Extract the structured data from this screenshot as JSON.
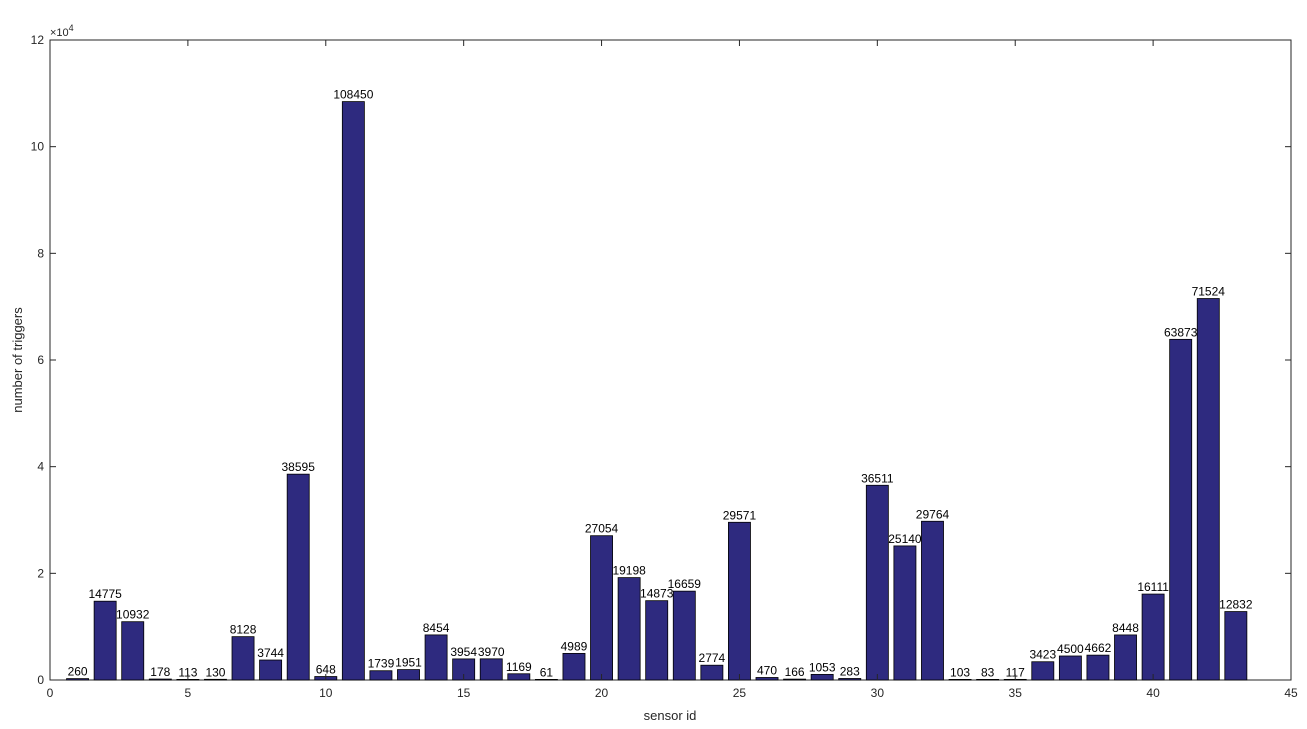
{
  "chart_data": {
    "type": "bar",
    "xlabel": "sensor id",
    "ylabel": "number of triggers",
    "y_exponent_label": "×10",
    "y_exponent_power": "4",
    "xlim": [
      0,
      45
    ],
    "ylim": [
      0,
      120000
    ],
    "x_ticks": [
      0,
      5,
      10,
      15,
      20,
      25,
      30,
      35,
      40,
      45
    ],
    "y_ticks": [
      0,
      20000,
      40000,
      60000,
      80000,
      100000,
      120000
    ],
    "y_tick_labels": [
      "0",
      "2",
      "4",
      "6",
      "8",
      "10",
      "12"
    ],
    "grid": false,
    "bar_color": "#2e2a7f",
    "x": [
      1,
      2,
      3,
      4,
      5,
      6,
      7,
      8,
      9,
      10,
      11,
      12,
      13,
      14,
      15,
      16,
      17,
      18,
      19,
      20,
      21,
      22,
      23,
      24,
      25,
      26,
      27,
      28,
      29,
      30,
      31,
      32,
      33,
      34,
      35,
      36,
      37,
      38,
      39,
      40,
      41,
      42,
      43
    ],
    "values": [
      260,
      14775,
      10932,
      178,
      113,
      130,
      8128,
      3744,
      38595,
      648,
      108450,
      1739,
      1951,
      8454,
      3954,
      3970,
      1169,
      61,
      4989,
      27054,
      19198,
      14873,
      16659,
      2774,
      29571,
      470,
      166,
      1053,
      283,
      36511,
      25140,
      29764,
      103,
      83,
      117,
      3423,
      4500,
      4662,
      8448,
      16111,
      63873,
      71524,
      12832
    ],
    "labels": [
      "260",
      "14775",
      "10932",
      "178",
      "113",
      "130",
      "8128",
      "3744",
      "38595",
      "648",
      "108450",
      "1739",
      "1951",
      "8454",
      "3954",
      "3970",
      "1169",
      "61",
      "4989",
      "27054",
      "19198",
      "14873",
      "16659",
      "2774",
      "29571",
      "470",
      "166",
      "1053",
      "283",
      "36511",
      "25140",
      "29764",
      "103",
      "83",
      "117",
      "3423",
      "4500",
      "4662",
      "8448",
      "16111",
      "63873",
      "71524",
      "12832"
    ]
  }
}
